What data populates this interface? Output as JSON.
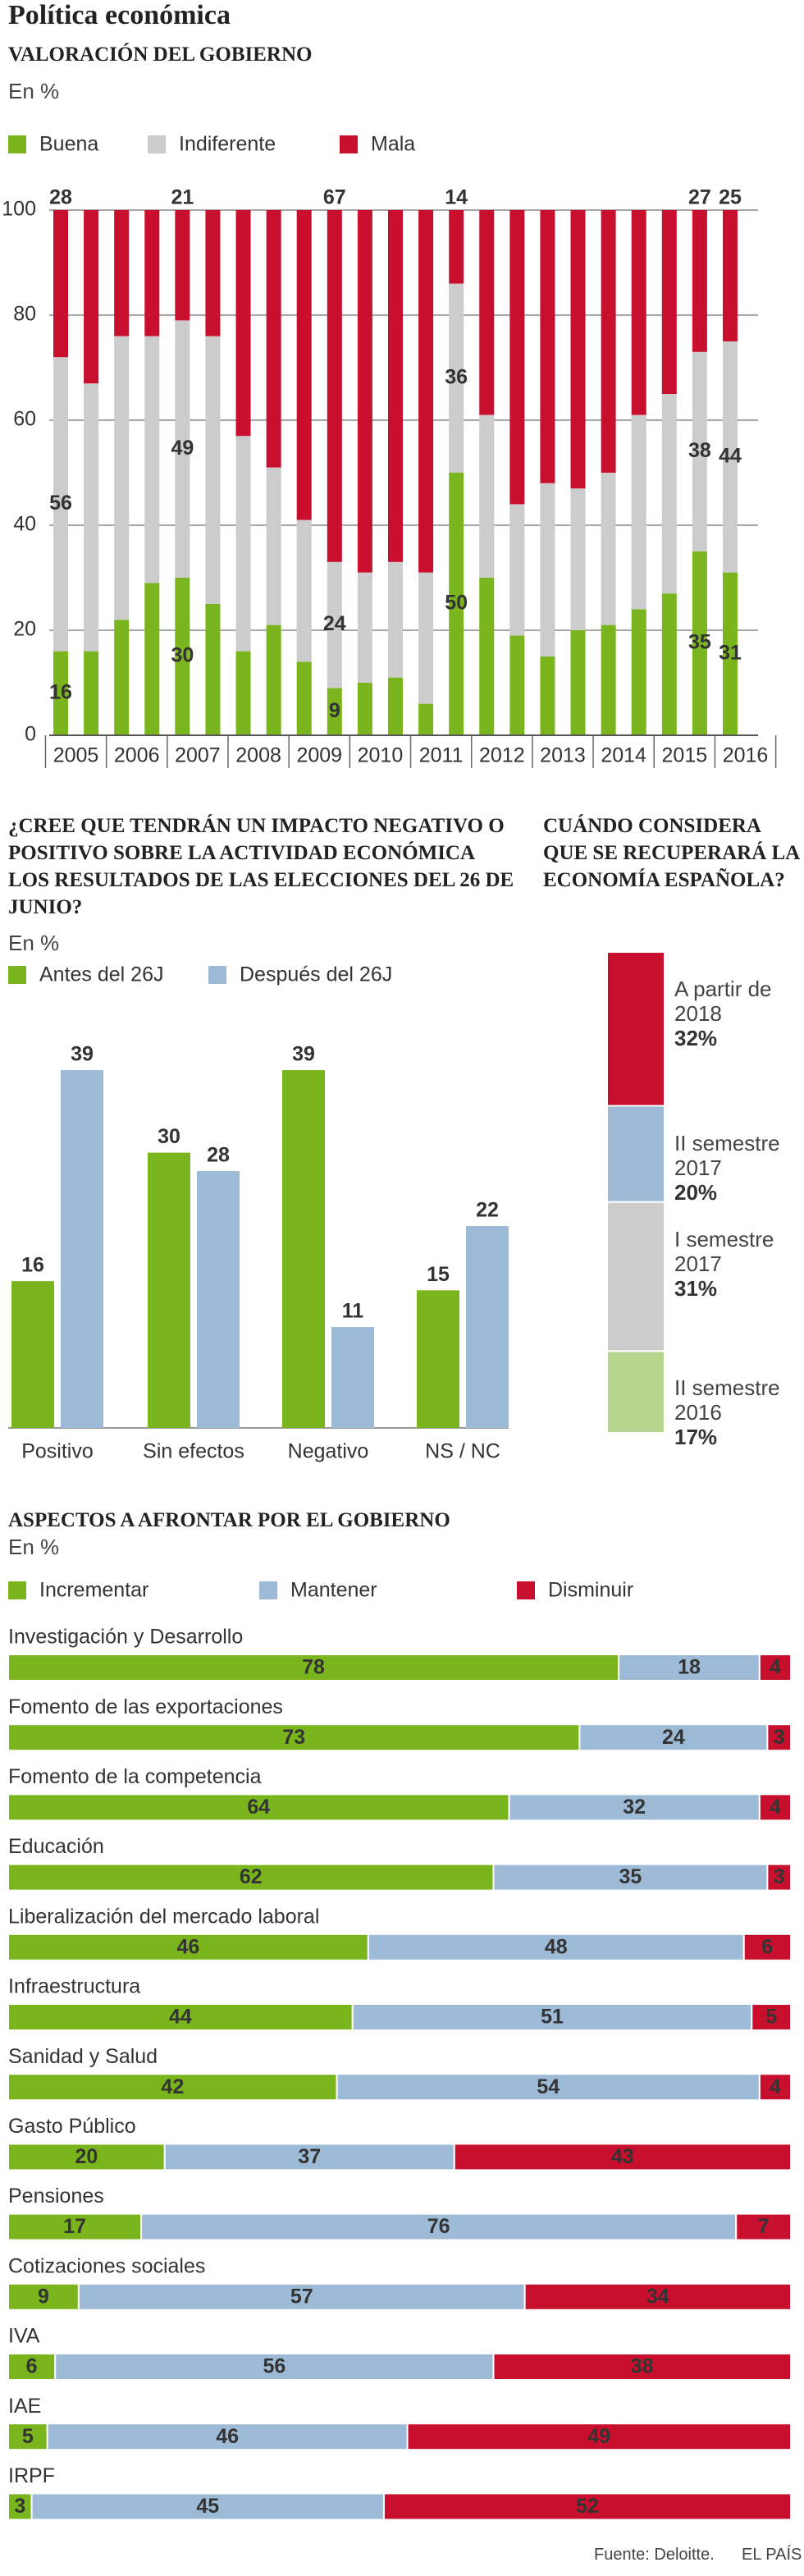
{
  "title": "Política económica",
  "source": "Fuente: Deloitte.",
  "brand": "EL PAÍS",
  "chart_data": [
    {
      "type": "stacked_bar",
      "title": "VALORACIÓN DEL GOBIERNO",
      "subtitle": "En %",
      "categories": [
        "2005",
        null,
        "2006",
        null,
        "2007",
        null,
        "2008",
        null,
        "2009",
        null,
        "2010",
        null,
        "2011",
        null,
        "2012",
        null,
        "2013",
        null,
        "2014",
        null,
        "2015",
        null,
        "2016"
      ],
      "series": [
        {
          "name": "Buena",
          "color": "#7ab51d",
          "values": [
            16,
            16,
            22,
            29,
            30,
            25,
            16,
            21,
            14,
            9,
            10,
            11,
            6,
            50,
            30,
            19,
            15,
            20,
            21,
            24,
            27,
            35,
            31
          ],
          "value_labels": [
            16,
            null,
            null,
            null,
            30,
            null,
            null,
            null,
            null,
            9,
            null,
            null,
            null,
            50,
            null,
            null,
            null,
            null,
            null,
            null,
            null,
            35,
            31
          ]
        },
        {
          "name": "Indiferente",
          "color": "#cccccc",
          "values": [
            56,
            51,
            54,
            47,
            49,
            51,
            41,
            30,
            27,
            24,
            21,
            22,
            25,
            36,
            31,
            25,
            33,
            27,
            29,
            37,
            38,
            38,
            44
          ],
          "value_labels": [
            56,
            null,
            null,
            null,
            49,
            null,
            null,
            null,
            null,
            24,
            null,
            null,
            null,
            36,
            null,
            null,
            null,
            null,
            null,
            null,
            null,
            38,
            44
          ]
        },
        {
          "name": "Mala",
          "color": "#c8102e",
          "values": [
            28,
            33,
            24,
            24,
            21,
            24,
            43,
            49,
            59,
            67,
            69,
            67,
            69,
            14,
            39,
            56,
            52,
            53,
            50,
            39,
            35,
            27,
            25
          ],
          "value_labels": [
            28,
            null,
            null,
            null,
            21,
            null,
            null,
            null,
            null,
            67,
            null,
            null,
            null,
            14,
            null,
            null,
            null,
            null,
            null,
            null,
            null,
            27,
            25
          ]
        }
      ],
      "ylim": [
        0,
        100
      ],
      "yticks": [
        0,
        20,
        40,
        60,
        80,
        100
      ],
      "grid": true
    },
    {
      "type": "grouped_bar",
      "title": "¿CREE QUE TENDRÁN UN IMPACTO NEGATIVO O POSITIVO SOBRE LA ACTIVIDAD ECONÓMICA LOS RESULTADOS DE LAS ELECCIONES DEL 26 DE JUNIO?",
      "subtitle": "En %",
      "categories": [
        "Positivo",
        "Sin efectos",
        "Negativo",
        "NS / NC"
      ],
      "series": [
        {
          "name": "Antes del 26J",
          "color": "#7ab51d",
          "values": [
            16,
            30,
            39,
            15
          ]
        },
        {
          "name": "Después del 26J",
          "color": "#9dbbd6",
          "values": [
            39,
            28,
            11,
            22
          ]
        }
      ]
    },
    {
      "type": "stack",
      "title": "CUÁNDO CONSIDERA QUE SE RECUPERARÁ LA ECONOMÍA ESPAÑOLA?",
      "categories": [
        "II semestre 2016",
        "I semestre 2017",
        "II semestre 2017",
        "A partir de 2018"
      ],
      "values": [
        17,
        31,
        20,
        32
      ],
      "value_labels": [
        "17%",
        "31%",
        "20%",
        "32%"
      ],
      "colors": [
        "#b5d68b",
        "#cccccc",
        "#9dbbd6",
        "#c8102e"
      ]
    },
    {
      "type": "stacked_hbar",
      "title": "ASPECTOS A AFRONTAR POR EL GOBIERNO",
      "subtitle": "En %",
      "categories": [
        "Investigación y Desarrollo",
        "Fomento de las exportaciones",
        "Fomento de la competencia",
        "Educación",
        "Liberalización del mercado laboral",
        "Infraestructura",
        "Sanidad y Salud",
        "Gasto Público",
        "Pensiones",
        "Cotizaciones sociales",
        "IVA",
        "IAE",
        "IRPF"
      ],
      "series": [
        {
          "name": "Incrementar",
          "color": "#7ab51d",
          "values": [
            78,
            73,
            64,
            62,
            46,
            44,
            42,
            20,
            17,
            9,
            6,
            5,
            3
          ]
        },
        {
          "name": "Mantener",
          "color": "#9dbbd6",
          "values": [
            18,
            24,
            32,
            35,
            48,
            51,
            54,
            37,
            76,
            57,
            56,
            46,
            45
          ]
        },
        {
          "name": "Disminuir",
          "color": "#c8102e",
          "values": [
            4,
            3,
            4,
            3,
            6,
            5,
            4,
            43,
            7,
            34,
            38,
            49,
            52
          ]
        }
      ]
    }
  ]
}
